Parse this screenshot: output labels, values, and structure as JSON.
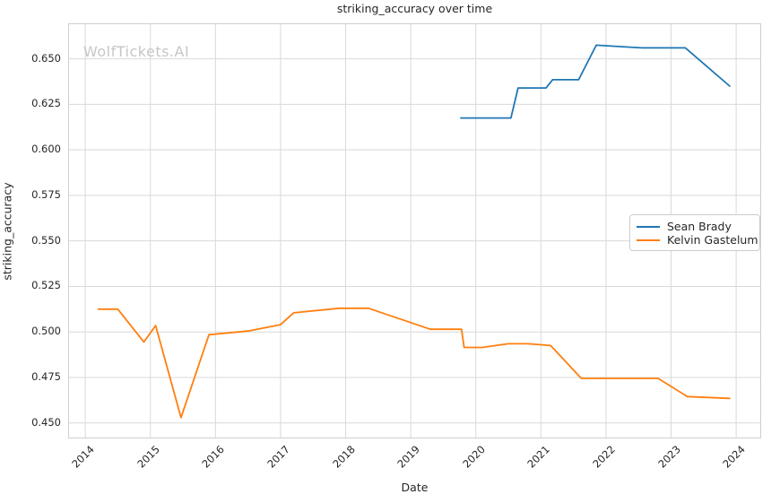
{
  "chart_data": {
    "type": "line",
    "title": "striking_accuracy over time",
    "xlabel": "Date",
    "ylabel": "striking_accuracy",
    "watermark": "WolfTickets.AI",
    "grid": true,
    "legend_position": "center-right",
    "xlim": [
      2013.75,
      2024.37
    ],
    "ylim": [
      0.442,
      0.669
    ],
    "xticks": [
      2014,
      2015,
      2016,
      2017,
      2018,
      2019,
      2020,
      2021,
      2022,
      2023,
      2024
    ],
    "yticks": [
      0.45,
      0.475,
      0.5,
      0.525,
      0.55,
      0.575,
      0.6,
      0.625,
      0.65
    ],
    "grid_color": "#d9d9d9",
    "series": [
      {
        "name": "Sean Brady",
        "color": "#1f77b4",
        "points": [
          [
            2019.77,
            0.6175
          ],
          [
            2020.54,
            0.6175
          ],
          [
            2020.65,
            0.634
          ],
          [
            2021.08,
            0.634
          ],
          [
            2021.18,
            0.6385
          ],
          [
            2021.58,
            0.6385
          ],
          [
            2021.85,
            0.6575
          ],
          [
            2022.55,
            0.656
          ],
          [
            2023.22,
            0.656
          ],
          [
            2023.9,
            0.635
          ]
        ]
      },
      {
        "name": "Kelvin Gastelum",
        "color": "#ff7f0e",
        "points": [
          [
            2014.2,
            0.5125
          ],
          [
            2014.5,
            0.5125
          ],
          [
            2014.9,
            0.4945
          ],
          [
            2015.08,
            0.5035
          ],
          [
            2015.47,
            0.453
          ],
          [
            2015.9,
            0.4985
          ],
          [
            2016.5,
            0.5005
          ],
          [
            2017.0,
            0.504
          ],
          [
            2017.2,
            0.5105
          ],
          [
            2017.9,
            0.513
          ],
          [
            2018.35,
            0.513
          ],
          [
            2019.3,
            0.5015
          ],
          [
            2019.78,
            0.5015
          ],
          [
            2019.82,
            0.4915
          ],
          [
            2020.1,
            0.4915
          ],
          [
            2020.5,
            0.4935
          ],
          [
            2020.8,
            0.4935
          ],
          [
            2021.15,
            0.4925
          ],
          [
            2021.62,
            0.4745
          ],
          [
            2022.8,
            0.4745
          ],
          [
            2023.25,
            0.4645
          ],
          [
            2023.9,
            0.4635
          ]
        ]
      }
    ]
  }
}
